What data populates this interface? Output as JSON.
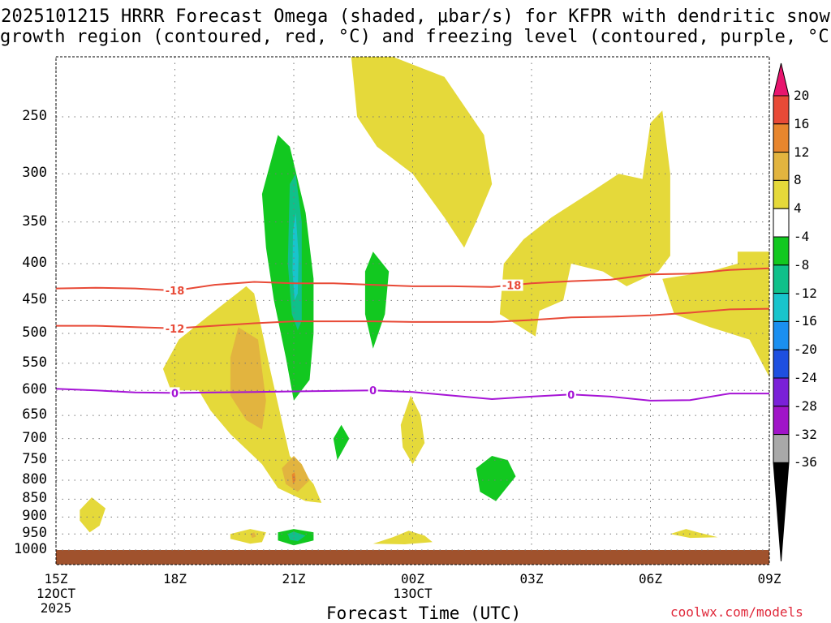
{
  "title_line1": "2025101215 HRRR Forecast Omega (shaded, μbar/s) for KFPR with dendritic snow",
  "title_line2": "growth region (contoured, red, °C) and freezing level (contoured, purple, °C)",
  "xaxis_title": "Forecast Time (UTC)",
  "credit": "coolwx.com/models",
  "chart_data": {
    "type": "time-height cross section",
    "x_unit": "hours since 15Z 12 OCT 2025",
    "x_range": [
      0,
      18
    ],
    "y_unit": "hPa",
    "y_range": [
      200,
      1050
    ],
    "x_ticks": [
      {
        "value": 0,
        "label": "15Z",
        "sub1": "12OCT",
        "sub2": "2025"
      },
      {
        "value": 3,
        "label": "18Z"
      },
      {
        "value": 6,
        "label": "21Z"
      },
      {
        "value": 9,
        "label": "00Z",
        "sub1": "13OCT"
      },
      {
        "value": 12,
        "label": "03Z"
      },
      {
        "value": 15,
        "label": "06Z"
      },
      {
        "value": 18,
        "label": "09Z"
      }
    ],
    "y_ticks": [
      250,
      300,
      350,
      400,
      450,
      500,
      550,
      600,
      650,
      700,
      750,
      800,
      850,
      900,
      950,
      1000
    ],
    "colorbar": {
      "labels": [
        "20",
        "16",
        "12",
        "8",
        "4",
        "-4",
        "-8",
        "-12",
        "-16",
        "-20",
        "-24",
        "-28",
        "-32",
        "-36"
      ],
      "colors": [
        "#e8156e",
        "#e84a37",
        "#e8862e",
        "#e2b43f",
        "#e5d93a",
        "#ffffff",
        "#12c820",
        "#10c08a",
        "#18c4cc",
        "#1a8ff0",
        "#1e4fe0",
        "#7a20d8",
        "#a014c8",
        "#a8a8a8",
        "#000000"
      ]
    },
    "omega_regions": [
      {
        "name": "yellow-upper-plume",
        "level": 4,
        "color": "#e5d93a",
        "points": [
          [
            7.45,
            200
          ],
          [
            8.5,
            205
          ],
          [
            9.8,
            220
          ],
          [
            10.8,
            265
          ],
          [
            11.0,
            310
          ],
          [
            10.6,
            350
          ],
          [
            10.3,
            380
          ],
          [
            9.8,
            345
          ],
          [
            9.0,
            300
          ],
          [
            8.1,
            275
          ],
          [
            7.6,
            250
          ],
          [
            7.5,
            220
          ]
        ]
      },
      {
        "name": "yellow-upper-right",
        "level": 4,
        "color": "#e5d93a",
        "points": [
          [
            11.2,
            470
          ],
          [
            11.3,
            400
          ],
          [
            11.8,
            370
          ],
          [
            12.5,
            345
          ],
          [
            13.5,
            318
          ],
          [
            14.2,
            300
          ],
          [
            14.8,
            305
          ],
          [
            15.0,
            255
          ],
          [
            15.3,
            245
          ],
          [
            15.5,
            300
          ],
          [
            15.5,
            390
          ],
          [
            15.2,
            410
          ],
          [
            14.4,
            430
          ],
          [
            13.8,
            410
          ],
          [
            13.0,
            400
          ],
          [
            12.8,
            450
          ],
          [
            12.2,
            465
          ],
          [
            12.1,
            505
          ]
        ]
      },
      {
        "name": "yellow-right-edge",
        "level": 4,
        "color": "#e5d93a",
        "points": [
          [
            17.2,
            385
          ],
          [
            18.0,
            385
          ],
          [
            18.0,
            575
          ],
          [
            17.5,
            510
          ],
          [
            16.5,
            490
          ],
          [
            15.6,
            470
          ],
          [
            15.3,
            420
          ],
          [
            16.5,
            410
          ],
          [
            17.2,
            400
          ]
        ]
      },
      {
        "name": "yellow-mid-plume",
        "level": 4,
        "color": "#e5d93a",
        "points": [
          [
            2.7,
            560
          ],
          [
            3.1,
            510
          ],
          [
            3.9,
            470
          ],
          [
            4.8,
            430
          ],
          [
            5.0,
            440
          ],
          [
            5.4,
            560
          ],
          [
            5.9,
            740
          ],
          [
            6.5,
            810
          ],
          [
            6.7,
            860
          ],
          [
            6.3,
            855
          ],
          [
            5.6,
            820
          ],
          [
            5.2,
            760
          ],
          [
            4.4,
            690
          ],
          [
            3.9,
            640
          ],
          [
            3.6,
            600
          ],
          [
            2.9,
            600
          ]
        ]
      },
      {
        "name": "orange-mid",
        "level": 8,
        "color": "#e2b43f",
        "points": [
          [
            4.4,
            540
          ],
          [
            4.6,
            490
          ],
          [
            5.1,
            510
          ],
          [
            5.3,
            620
          ],
          [
            5.2,
            680
          ],
          [
            4.8,
            660
          ],
          [
            4.4,
            610
          ]
        ]
      },
      {
        "name": "orange-low",
        "level": 8,
        "color": "#e2b43f",
        "points": [
          [
            5.7,
            770
          ],
          [
            6.0,
            740
          ],
          [
            6.2,
            760
          ],
          [
            6.4,
            800
          ],
          [
            6.1,
            830
          ],
          [
            5.8,
            810
          ]
        ]
      },
      {
        "name": "dark-orange-low",
        "level": 12,
        "color": "#e8862e",
        "points": [
          [
            5.95,
            785
          ],
          [
            6.02,
            780
          ],
          [
            6.05,
            800
          ],
          [
            5.98,
            810
          ]
        ]
      },
      {
        "name": "green-tall-column",
        "level": -4,
        "color": "#12c820",
        "points": [
          [
            5.2,
            320
          ],
          [
            5.6,
            265
          ],
          [
            5.9,
            275
          ],
          [
            6.3,
            340
          ],
          [
            6.5,
            420
          ],
          [
            6.5,
            500
          ],
          [
            6.4,
            580
          ],
          [
            6.0,
            620
          ],
          [
            5.8,
            540
          ],
          [
            5.5,
            450
          ],
          [
            5.3,
            380
          ]
        ]
      },
      {
        "name": "teal-column-core",
        "level": -8,
        "color": "#10c08a",
        "points": [
          [
            5.9,
            310
          ],
          [
            6.05,
            300
          ],
          [
            6.2,
            350
          ],
          [
            6.2,
            480
          ],
          [
            6.1,
            495
          ],
          [
            5.95,
            470
          ],
          [
            5.85,
            400
          ]
        ]
      },
      {
        "name": "cyan-column-core",
        "level": -12,
        "color": "#18c4cc",
        "points": [
          [
            5.98,
            360
          ],
          [
            6.05,
            340
          ],
          [
            6.12,
            390
          ],
          [
            6.1,
            440
          ],
          [
            6.02,
            450
          ],
          [
            5.97,
            410
          ]
        ]
      },
      {
        "name": "green-mid-blob",
        "level": -4,
        "color": "#12c820",
        "points": [
          [
            7.8,
            410
          ],
          [
            8.0,
            385
          ],
          [
            8.4,
            410
          ],
          [
            8.3,
            470
          ],
          [
            8.0,
            525
          ],
          [
            7.8,
            470
          ]
        ]
      },
      {
        "name": "green-small-700",
        "level": -4,
        "color": "#12c820",
        "points": [
          [
            7.0,
            700
          ],
          [
            7.2,
            670
          ],
          [
            7.4,
            700
          ],
          [
            7.1,
            750
          ]
        ]
      },
      {
        "name": "green-800-blob",
        "level": -4,
        "color": "#12c820",
        "points": [
          [
            10.6,
            770
          ],
          [
            11.0,
            740
          ],
          [
            11.4,
            750
          ],
          [
            11.6,
            790
          ],
          [
            11.1,
            855
          ],
          [
            10.7,
            830
          ]
        ]
      },
      {
        "name": "green-950-blob",
        "level": -4,
        "color": "#12c820",
        "points": [
          [
            5.6,
            945
          ],
          [
            6.0,
            935
          ],
          [
            6.5,
            945
          ],
          [
            6.5,
            970
          ],
          [
            6.0,
            985
          ],
          [
            5.6,
            970
          ]
        ]
      },
      {
        "name": "teal-950-core",
        "level": -8,
        "color": "#10c08a",
        "points": [
          [
            5.85,
            950
          ],
          [
            6.0,
            943
          ],
          [
            6.3,
            955
          ],
          [
            6.1,
            972
          ],
          [
            5.9,
            968
          ]
        ]
      },
      {
        "name": "yellow-880-blob",
        "level": 4,
        "color": "#e5d93a",
        "points": [
          [
            0.6,
            880
          ],
          [
            0.9,
            845
          ],
          [
            1.25,
            875
          ],
          [
            1.1,
            925
          ],
          [
            0.85,
            945
          ],
          [
            0.6,
            910
          ]
        ]
      },
      {
        "name": "yellow-950-left",
        "level": 4,
        "color": "#e5d93a",
        "points": [
          [
            4.4,
            950
          ],
          [
            4.9,
            935
          ],
          [
            5.3,
            945
          ],
          [
            5.2,
            975
          ],
          [
            4.9,
            980
          ],
          [
            4.4,
            965
          ]
        ]
      },
      {
        "name": "orange-950-dot",
        "level": 8,
        "color": "#e2b43f",
        "points": [
          [
            4.9,
            950
          ],
          [
            5.0,
            945
          ],
          [
            5.05,
            958
          ],
          [
            4.95,
            962
          ]
        ]
      },
      {
        "name": "yellow-650-blob",
        "level": 4,
        "color": "#e5d93a",
        "points": [
          [
            8.7,
            670
          ],
          [
            8.95,
            610
          ],
          [
            9.2,
            650
          ],
          [
            9.3,
            710
          ],
          [
            9.0,
            760
          ],
          [
            8.75,
            720
          ]
        ]
      },
      {
        "name": "yellow-970-mid",
        "level": 4,
        "color": "#e5d93a",
        "points": [
          [
            8.0,
            980
          ],
          [
            8.5,
            960
          ],
          [
            8.9,
            940
          ],
          [
            9.3,
            955
          ],
          [
            9.5,
            975
          ],
          [
            8.8,
            982
          ]
        ]
      },
      {
        "name": "yellow-950-right",
        "level": 4,
        "color": "#e5d93a",
        "points": [
          [
            15.5,
            950
          ],
          [
            15.9,
            935
          ],
          [
            16.2,
            945
          ],
          [
            16.7,
            960
          ],
          [
            16.0,
            962
          ]
        ]
      }
    ],
    "contours": [
      {
        "name": "minus-18",
        "color": "#e84a37",
        "value_label": "-18",
        "label_positions": [
          3.0,
          11.5
        ],
        "points": [
          [
            0,
            433
          ],
          [
            1,
            432
          ],
          [
            2,
            433
          ],
          [
            3,
            436
          ],
          [
            4,
            428
          ],
          [
            5,
            424
          ],
          [
            6,
            426
          ],
          [
            7,
            426
          ],
          [
            8,
            428
          ],
          [
            9,
            430
          ],
          [
            10,
            430
          ],
          [
            11,
            431
          ],
          [
            12,
            426
          ],
          [
            13,
            423
          ],
          [
            14,
            421
          ],
          [
            15,
            414
          ],
          [
            16,
            413
          ],
          [
            17,
            408
          ],
          [
            18,
            406
          ]
        ]
      },
      {
        "name": "minus-12",
        "color": "#e84a37",
        "value_label": "-12",
        "label_positions": [
          3.0
        ],
        "points": [
          [
            0,
            488
          ],
          [
            1,
            488
          ],
          [
            2,
            490
          ],
          [
            3,
            492
          ],
          [
            4,
            488
          ],
          [
            5,
            484
          ],
          [
            6,
            481
          ],
          [
            7,
            481
          ],
          [
            8,
            481
          ],
          [
            9,
            482
          ],
          [
            10,
            482
          ],
          [
            11,
            482
          ],
          [
            12,
            479
          ],
          [
            13,
            475
          ],
          [
            14,
            474
          ],
          [
            15,
            472
          ],
          [
            16,
            468
          ],
          [
            17,
            463
          ],
          [
            18,
            462
          ]
        ]
      },
      {
        "name": "zero",
        "color": "#a614d6",
        "value_label": "0",
        "label_positions": [
          3.0,
          8.0,
          13.0
        ],
        "points": [
          [
            0,
            597
          ],
          [
            1,
            600
          ],
          [
            2,
            604
          ],
          [
            3,
            605
          ],
          [
            4,
            604
          ],
          [
            5,
            603
          ],
          [
            6,
            602
          ],
          [
            7,
            601
          ],
          [
            8,
            600
          ],
          [
            9,
            603
          ],
          [
            10,
            610
          ],
          [
            11,
            617
          ],
          [
            12,
            612
          ],
          [
            13,
            608
          ],
          [
            14,
            612
          ],
          [
            15,
            620
          ],
          [
            16,
            619
          ],
          [
            17,
            606
          ],
          [
            18,
            606
          ]
        ]
      }
    ]
  }
}
